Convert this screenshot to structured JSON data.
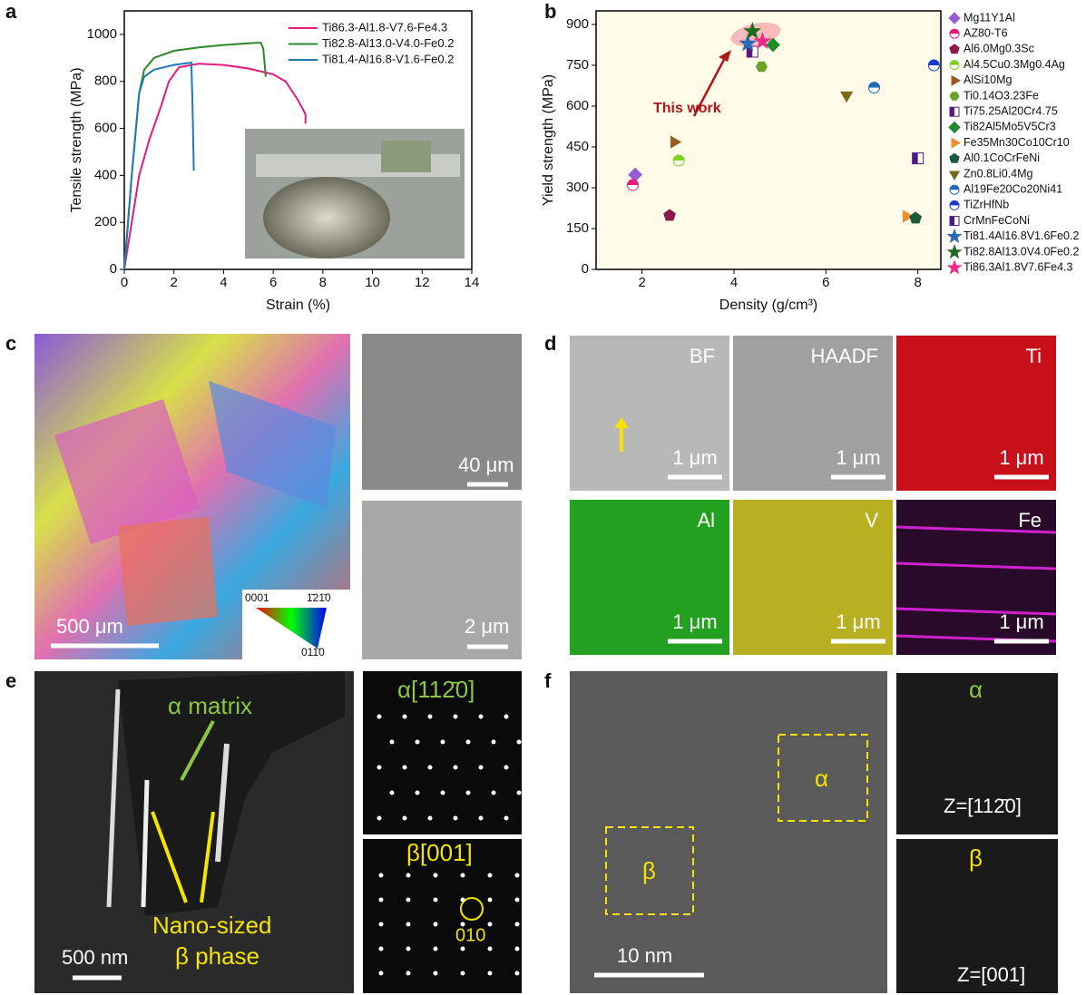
{
  "chart_data": [
    {
      "type": "line",
      "x_label": "Strain (%)",
      "y_label": "Tensile strength (MPa)",
      "xlim": [
        0,
        14
      ],
      "xticks": [
        0,
        2,
        4,
        6,
        8,
        10,
        12,
        14
      ],
      "ylim": [
        0,
        1100
      ],
      "yticks": [
        0,
        200,
        400,
        600,
        800,
        1000
      ],
      "legend": "top-right",
      "series": [
        {
          "name": "Ti86.3-Al1.8-V7.6-Fe4.3",
          "color": "#e8197d",
          "x": [
            0,
            0.3,
            0.6,
            1,
            1.5,
            1.8,
            2.2,
            3,
            4,
            5,
            6,
            6.5,
            7,
            7.3,
            7.3
          ],
          "values": [
            0,
            200,
            400,
            550,
            700,
            800,
            860,
            875,
            870,
            855,
            830,
            800,
            720,
            660,
            620
          ]
        },
        {
          "name": "Ti82.8-Al13.0-V4.0-Fe0.2",
          "color": "#2a8a2a",
          "x": [
            0,
            0.3,
            0.6,
            0.8,
            1.2,
            2,
            3,
            4,
            5,
            5.5,
            5.6,
            5.7
          ],
          "values": [
            0,
            400,
            750,
            850,
            900,
            930,
            945,
            955,
            962,
            965,
            940,
            820
          ]
        },
        {
          "name": "Ti81.4-Al16.8-V1.6-Fe0.2",
          "color": "#1f7ab5",
          "x": [
            0,
            0.3,
            0.6,
            0.8,
            1.2,
            2,
            2.7,
            2.75,
            2.8
          ],
          "values": [
            0,
            400,
            750,
            820,
            850,
            870,
            880,
            700,
            420
          ]
        }
      ]
    },
    {
      "type": "scatter",
      "x_label": "Density (g/cm³)",
      "y_label": "Yield strength (MPa)",
      "xlim": [
        1,
        8.5
      ],
      "xticks": [
        2,
        4,
        6,
        8
      ],
      "ylim": [
        0,
        950
      ],
      "yticks": [
        0,
        150,
        300,
        450,
        600,
        750,
        900
      ],
      "plot_background": "#fffbe8",
      "legend": "right",
      "annotation": "This work",
      "series": [
        {
          "name": "Mg11Y1Al",
          "color": "#9b59d0",
          "marker": "diamond",
          "x": [
            1.85
          ],
          "values": [
            348
          ]
        },
        {
          "name": "AZ80-T6",
          "color": "#e8197d",
          "marker": "half-circle",
          "x": [
            1.8
          ],
          "values": [
            310
          ]
        },
        {
          "name": "Al6.0Mg0.3Sc",
          "color": "#8b1a4a",
          "marker": "pentagon",
          "x": [
            2.6
          ],
          "values": [
            198
          ]
        },
        {
          "name": "Al4.5Cu0.3Mg0.4Ag",
          "color": "#7ed321",
          "marker": "half-circle",
          "x": [
            2.8
          ],
          "values": [
            400
          ]
        },
        {
          "name": "AlSi10Mg",
          "color": "#9c5a1a",
          "marker": "triangle-right",
          "x": [
            2.7
          ],
          "values": [
            468
          ]
        },
        {
          "name": "Ti0.14O3.23Fe",
          "color": "#6aa32b",
          "marker": "hexagon",
          "x": [
            4.6
          ],
          "values": [
            745
          ]
        },
        {
          "name": "Ti75.25Al20Cr4.75",
          "color": "#5b1a7a",
          "marker": "half-square",
          "x": [
            4.4
          ],
          "values": [
            800
          ]
        },
        {
          "name": "Ti82Al5Mo5V5Cr3",
          "color": "#1e8a2a",
          "marker": "diamond",
          "x": [
            4.85
          ],
          "values": [
            825
          ]
        },
        {
          "name": "Fe35Mn30Co10Cr10",
          "color": "#f08a2a",
          "marker": "triangle-right",
          "x": [
            7.75
          ],
          "values": [
            195
          ]
        },
        {
          "name": "Al0.1CoCrFeNi",
          "color": "#1a5a3a",
          "marker": "pentagon",
          "x": [
            7.95
          ],
          "values": [
            188
          ]
        },
        {
          "name": "Zn0.8Li0.4Mg",
          "color": "#7a6a1a",
          "marker": "triangle-down",
          "x": [
            6.45
          ],
          "values": [
            640
          ]
        },
        {
          "name": "Al19Fe20Co20Ni41",
          "color": "#1f6ab5",
          "marker": "half-circle",
          "x": [
            7.05
          ],
          "values": [
            668
          ]
        },
        {
          "name": "TiZrHfNb",
          "color": "#1a3ad0",
          "marker": "half-circle",
          "x": [
            8.35
          ],
          "values": [
            750
          ]
        },
        {
          "name": "CrMnFeCoNi",
          "color": "#4a1a8a",
          "marker": "half-square",
          "x": [
            8.0
          ],
          "values": [
            408
          ]
        },
        {
          "name": "Ti81.4Al16.8V1.6Fe0.2",
          "color": "#2a6ab5",
          "marker": "star",
          "x": [
            4.3
          ],
          "values": [
            830
          ]
        },
        {
          "name": "Ti82.8Al13.0V4.0Fe0.2",
          "color": "#1e6a1e",
          "marker": "star",
          "x": [
            4.4
          ],
          "values": [
            875
          ]
        },
        {
          "name": "Ti86.3Al1.8V7.6Fe4.3",
          "color": "#f02a8a",
          "marker": "star",
          "x": [
            4.62
          ],
          "values": [
            838
          ]
        }
      ]
    }
  ],
  "panel_labels": [
    "a",
    "b",
    "c",
    "d",
    "e",
    "f"
  ],
  "panel_c": {
    "scale_bars": [
      "500 μm",
      "40 μm",
      "2 μm"
    ],
    "ipf_labels": [
      "0001",
      "1̄21̄0",
      "011̄0"
    ]
  },
  "panel_d": {
    "channels": [
      "BF",
      "HAADF",
      "Ti",
      "Al",
      "V",
      "Fe"
    ],
    "scale_bars": [
      "1 μm",
      "1 μm",
      "1 μm",
      "1 μm",
      "1 μm",
      "1 μm"
    ]
  },
  "panel_e": {
    "annotations": [
      "α matrix",
      "Nano-sized",
      "β phase"
    ],
    "scale_bar": "500 nm",
    "patterns": [
      "α[112̄0]",
      "β[001]"
    ],
    "spot": "010"
  },
  "panel_f": {
    "regions": [
      "α",
      "β"
    ],
    "scale_bar": "10 nm",
    "fft_phases": [
      "α",
      "β"
    ],
    "zone_axes": [
      "Z=[112̄0]",
      "Z=[001]"
    ]
  }
}
